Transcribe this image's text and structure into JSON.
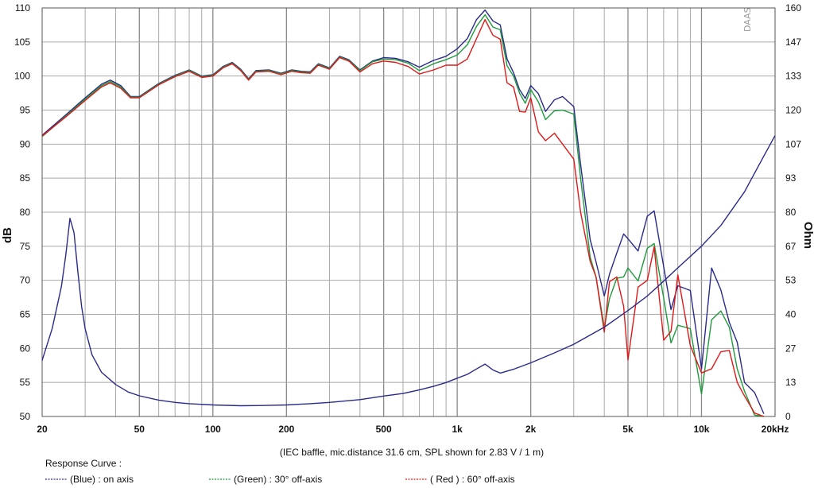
{
  "chart_data": {
    "type": "line",
    "xscale": "log",
    "xlim": [
      20,
      20000
    ],
    "ylabel": "dB",
    "ylim": [
      50,
      110
    ],
    "y2label": "Ohm",
    "y2lim": [
      0,
      160
    ],
    "grid": true,
    "x_ticks": [
      20,
      50,
      100,
      200,
      500,
      1000,
      2000,
      5000,
      10000,
      20000
    ],
    "x_tick_labels": [
      "20",
      "50",
      "100",
      "200",
      "500",
      "1k",
      "2k",
      "5k",
      "10k",
      "20kHz"
    ],
    "y_ticks": [
      50,
      55,
      60,
      65,
      70,
      75,
      80,
      85,
      90,
      95,
      100,
      105,
      110
    ],
    "y2_ticks": [
      0,
      13,
      27,
      40,
      53,
      67,
      80,
      93,
      107,
      120,
      133,
      147,
      160
    ],
    "note": "(IEC baffle, mic.distance 31.6 cm, SPL shown for 2.83 V / 1 m)",
    "watermark": "DAAS",
    "legend": {
      "title": "Response Curve :",
      "entries": [
        {
          "label": "(Blue)  : on axis",
          "color": "#2a2a8c"
        },
        {
          "label": "(Green) : 30° off-axis",
          "color": "#1e9a3c"
        },
        {
          "label": "( Red )  : 60° off-axis",
          "color": "#e01818"
        }
      ]
    },
    "series": [
      {
        "color": "#2a2a8c",
        "axis": "left",
        "x": [
          20,
          25,
          30,
          35,
          38,
          42,
          46,
          50,
          60,
          70,
          80,
          90,
          100,
          110,
          120,
          130,
          140,
          150,
          170,
          190,
          210,
          230,
          250,
          270,
          300,
          330,
          360,
          400,
          450,
          500,
          560,
          630,
          700,
          800,
          900,
          1000,
          1100,
          1200,
          1300,
          1400,
          1500,
          1600,
          1700,
          1800,
          1900,
          2000,
          2150,
          2300,
          2500,
          2700,
          3000,
          3200,
          3500,
          3700,
          4000,
          4200,
          4500,
          4800,
          5000,
          5500,
          6000,
          6400,
          7000,
          7500,
          8000,
          9000,
          10000,
          11000,
          12000,
          13000,
          14000,
          15000,
          16500,
          18000
        ],
        "y": [
          91.3,
          94.3,
          96.8,
          98.8,
          99.4,
          98.6,
          97.0,
          97.0,
          98.9,
          100.1,
          100.9,
          100.0,
          100.2,
          101.4,
          102.0,
          101.0,
          99.6,
          100.8,
          100.9,
          100.4,
          100.9,
          100.7,
          100.6,
          101.8,
          101.2,
          102.9,
          102.4,
          100.9,
          102.2,
          102.7,
          102.6,
          102.1,
          101.3,
          102.3,
          102.9,
          104.0,
          105.5,
          108.3,
          109.7,
          108.1,
          107.5,
          102.5,
          100.5,
          98.0,
          96.7,
          98.6,
          97.4,
          94.8,
          96.5,
          97.0,
          95.5,
          87.0,
          76.0,
          72.7,
          67.7,
          70.9,
          74.0,
          76.8,
          76.1,
          74.3,
          79.4,
          80.2,
          72.0,
          65.7,
          69.2,
          68.5,
          57.0,
          71.8,
          68.6,
          63.8,
          60.9,
          55.0,
          53.5,
          50.4
        ]
      },
      {
        "color": "#1e9a3c",
        "axis": "left",
        "x": [
          20,
          25,
          30,
          35,
          38,
          42,
          46,
          50,
          60,
          70,
          80,
          90,
          100,
          110,
          120,
          130,
          140,
          150,
          170,
          190,
          210,
          230,
          250,
          270,
          300,
          330,
          360,
          400,
          450,
          500,
          560,
          630,
          700,
          800,
          900,
          1000,
          1100,
          1200,
          1300,
          1400,
          1500,
          1600,
          1700,
          1800,
          1900,
          2000,
          2150,
          2300,
          2500,
          2700,
          3000,
          3200,
          3500,
          3700,
          4000,
          4200,
          4500,
          4800,
          5000,
          5500,
          6000,
          6400,
          7000,
          7500,
          8000,
          9000,
          10000,
          11000,
          12000,
          13000,
          14000,
          15000,
          16500,
          18000
        ],
        "y": [
          91.1,
          94.1,
          96.6,
          98.6,
          99.2,
          98.4,
          96.9,
          96.9,
          98.8,
          100.0,
          100.8,
          99.9,
          100.1,
          101.3,
          101.9,
          100.9,
          99.5,
          100.7,
          100.8,
          100.3,
          100.8,
          100.6,
          100.5,
          101.7,
          101.1,
          102.8,
          102.3,
          100.8,
          102.1,
          102.5,
          102.4,
          101.9,
          100.8,
          101.8,
          102.4,
          103.1,
          104.6,
          107.3,
          109.0,
          107.2,
          106.8,
          101.5,
          100.0,
          97.5,
          96.0,
          98.0,
          96.2,
          93.6,
          94.9,
          95.0,
          94.4,
          85.0,
          73.4,
          70.5,
          63.0,
          67.3,
          70.3,
          70.5,
          71.8,
          69.9,
          74.7,
          75.4,
          67.4,
          60.8,
          63.4,
          62.9,
          53.3,
          64.2,
          65.5,
          63.1,
          57.0,
          53.7,
          50.2,
          50.0
        ]
      },
      {
        "color": "#e01818",
        "axis": "left",
        "x": [
          20,
          25,
          30,
          35,
          38,
          42,
          46,
          50,
          60,
          70,
          80,
          90,
          100,
          110,
          120,
          130,
          140,
          150,
          170,
          190,
          210,
          230,
          250,
          270,
          300,
          330,
          360,
          400,
          450,
          500,
          560,
          630,
          700,
          800,
          900,
          1000,
          1100,
          1200,
          1300,
          1400,
          1500,
          1600,
          1700,
          1800,
          1900,
          2000,
          2150,
          2300,
          2500,
          2700,
          3000,
          3200,
          3500,
          3700,
          4000,
          4200,
          4500,
          4800,
          5000,
          5500,
          6000,
          6400,
          7000,
          7500,
          8000,
          9000,
          10000,
          11000,
          12000,
          13000,
          14000,
          15000,
          16500,
          18000
        ],
        "y": [
          91.2,
          94.0,
          96.4,
          98.4,
          99.0,
          98.2,
          96.8,
          96.8,
          98.7,
          99.9,
          100.7,
          99.8,
          100.0,
          101.2,
          101.8,
          100.8,
          99.4,
          100.6,
          100.7,
          100.2,
          100.7,
          100.5,
          100.4,
          101.6,
          101.0,
          102.7,
          102.2,
          100.6,
          101.8,
          102.2,
          102.0,
          101.4,
          100.3,
          100.9,
          101.6,
          101.6,
          102.5,
          105.5,
          108.3,
          106.0,
          105.4,
          99.0,
          98.4,
          94.8,
          94.7,
          96.8,
          91.8,
          90.5,
          91.6,
          90.0,
          87.8,
          80.0,
          72.8,
          70.5,
          62.4,
          69.8,
          70.5,
          66.2,
          58.3,
          69.0,
          70.0,
          74.9,
          61.2,
          62.5,
          70.8,
          60.4,
          56.4,
          57.0,
          59.5,
          59.7,
          55.0,
          53.0,
          50.5,
          50.0
        ]
      },
      {
        "color": "#2a2a8c",
        "axis": "right",
        "x": [
          20,
          22,
          24,
          25,
          26,
          27,
          28,
          29,
          30,
          32,
          35,
          40,
          45,
          50,
          60,
          70,
          80,
          100,
          130,
          160,
          200,
          250,
          300,
          400,
          500,
          600,
          700,
          800,
          900,
          1000,
          1100,
          1200,
          1300,
          1400,
          1500,
          1700,
          2000,
          2500,
          3000,
          4000,
          5000,
          6000,
          7000,
          8000,
          10000,
          12000,
          15000,
          18000,
          20000
        ],
        "y": [
          21.9,
          34.5,
          51.0,
          63.3,
          77.6,
          72.0,
          56.8,
          43.2,
          34.4,
          24.2,
          17.3,
          12.5,
          9.6,
          8.1,
          6.4,
          5.5,
          5.0,
          4.5,
          4.2,
          4.3,
          4.5,
          5.0,
          5.5,
          6.6,
          8.0,
          9.0,
          10.4,
          11.8,
          13.3,
          15.0,
          16.5,
          18.6,
          20.5,
          18.2,
          17.0,
          18.5,
          21.0,
          24.9,
          28.3,
          35.0,
          41.5,
          47.2,
          53.0,
          58.2,
          66.7,
          74.8,
          88.0,
          102.0,
          110.0
        ]
      }
    ]
  }
}
